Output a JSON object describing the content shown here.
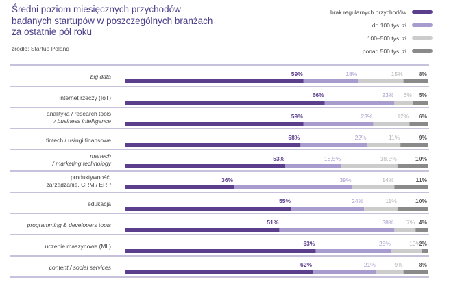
{
  "title": "Średni poziom miesięcznych przychodów badanych startupów w poszczególnych branżach za ostatnie pół roku",
  "source": "źrodło: Startup Poland",
  "colors": {
    "brak": "#5b3e8c",
    "do100": "#a89bcd",
    "s100_500": "#cccccc",
    "ponad500": "#8a8a8a",
    "row_line": "#6a5aa0",
    "label_brak": "#5b3e8c",
    "label_do100": "#a89bcd",
    "label_s100_500": "#b5b5b5",
    "label_ponad500": "#555555"
  },
  "legend": [
    {
      "label": "brak regularnych przychodów",
      "key": "brak"
    },
    {
      "label": "do 100 tys. zł",
      "key": "do100"
    },
    {
      "label": "100–500 tys. zł",
      "key": "s100_500"
    },
    {
      "label": "ponad 500 tys. zł",
      "key": "ponad500"
    }
  ],
  "chart_data": {
    "type": "bar",
    "stacked": true,
    "orientation": "horizontal",
    "title": "Średni poziom miesięcznych przychodów badanych startupów w poszczególnych branżach za ostatnie pół roku",
    "unit": "%",
    "categories": [
      {
        "lines": [
          "big data"
        ],
        "italic": [
          true
        ]
      },
      {
        "lines": [
          "internet rzeczy (IoT)"
        ],
        "italic": [
          false
        ]
      },
      {
        "lines": [
          "analityka / research tools",
          "/ business intelligence"
        ],
        "italic": [
          false,
          true
        ]
      },
      {
        "lines": [
          "fintech / usługi finansowe"
        ],
        "italic": [
          false
        ]
      },
      {
        "lines": [
          "martech",
          "/ marketing technology"
        ],
        "italic": [
          true,
          true
        ]
      },
      {
        "lines": [
          "produktywność,",
          "zarządzanie, CRM / ERP"
        ],
        "italic": [
          false,
          false
        ]
      },
      {
        "lines": [
          "edukacja"
        ],
        "italic": [
          false
        ]
      },
      {
        "lines": [
          "programming & developers tools"
        ],
        "italic": [
          true
        ]
      },
      {
        "lines": [
          "uczenie maszynowe (ML)"
        ],
        "italic": [
          false
        ]
      },
      {
        "lines": [
          "content / social services"
        ],
        "italic": [
          true
        ]
      }
    ],
    "series": [
      {
        "name": "brak regularnych przychodów",
        "key": "brak",
        "values": [
          59,
          66,
          59,
          58,
          53,
          36,
          55,
          51,
          63,
          62
        ],
        "labels": [
          "59%",
          "66%",
          "59%",
          "58%",
          "53%",
          "36%",
          "55%",
          "51%",
          "63%",
          "62%"
        ]
      },
      {
        "name": "do 100 tys. zł",
        "key": "do100",
        "values": [
          18,
          23,
          23,
          22,
          18.5,
          39,
          24,
          38,
          25,
          21
        ],
        "labels": [
          "18%",
          "23%",
          "23%",
          "22%",
          "18,5%",
          "39%",
          "24%",
          "38%",
          "25%",
          "21%"
        ]
      },
      {
        "name": "100–500 tys. zł",
        "key": "s100_500",
        "values": [
          15,
          6,
          12,
          11,
          18.5,
          14,
          11,
          7,
          10,
          9
        ],
        "labels": [
          "15%",
          "6%",
          "12%",
          "11%",
          "18,5%",
          "14%",
          "11%",
          "7%",
          "10%",
          "9%"
        ]
      },
      {
        "name": "ponad 500 tys. zł",
        "key": "ponad500",
        "values": [
          8,
          5,
          6,
          9,
          10,
          11,
          10,
          4,
          2,
          8
        ],
        "labels": [
          "8%",
          "5%",
          "6%",
          "9%",
          "10%",
          "11%",
          "10%",
          "4%",
          "2%",
          "8%"
        ]
      }
    ],
    "xlim": [
      0,
      100
    ]
  }
}
